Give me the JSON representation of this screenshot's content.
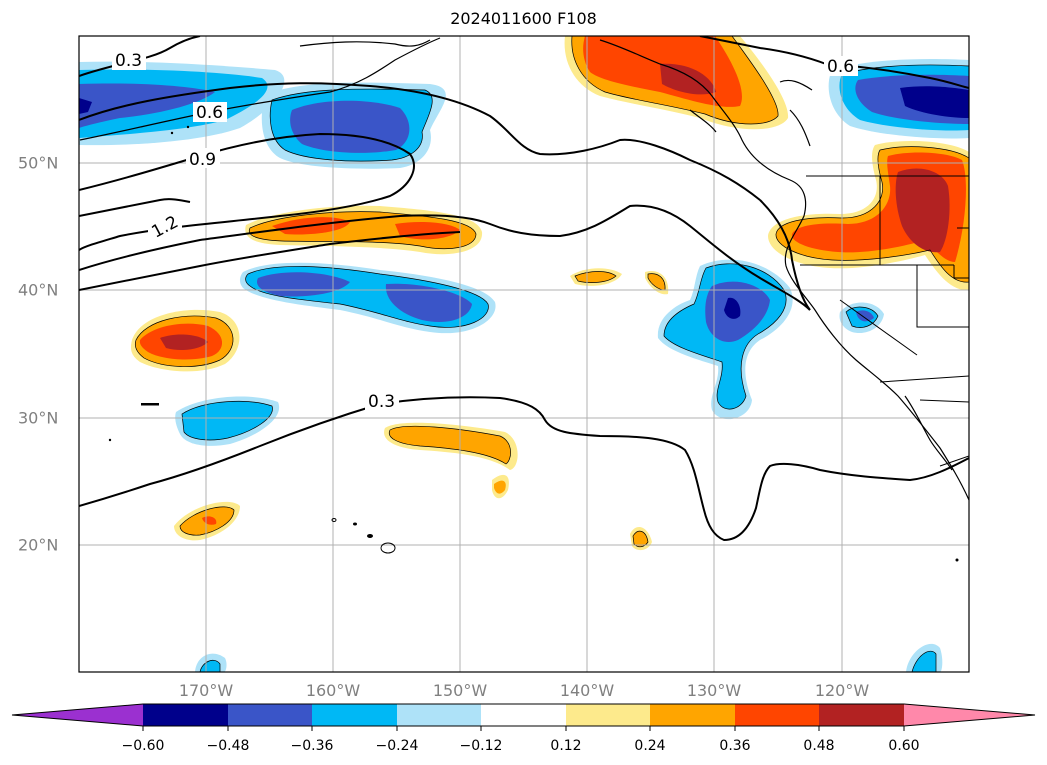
{
  "title": "2024011600 F108",
  "map": {
    "lon_ticks": [
      "170°W",
      "160°W",
      "150°W",
      "140°W",
      "130°W",
      "120°W"
    ],
    "lat_ticks": [
      "50°N",
      "40°N",
      "30°N",
      "20°N"
    ],
    "contour_labels": [
      "0.3",
      "0.6",
      "0.9",
      "1.2",
      "0.6",
      "0.3"
    ]
  },
  "colorbar": {
    "ticks": [
      "−0.60",
      "−0.48",
      "−0.36",
      "−0.24",
      "−0.12",
      "0.12",
      "0.24",
      "0.36",
      "0.48",
      "0.60"
    ],
    "colors": [
      "#9b30d0",
      "#00008b",
      "#3a55c8",
      "#00b8f5",
      "#aee2f8",
      "#ffffff",
      "#fdea8c",
      "#ffa500",
      "#ff4500",
      "#b22222",
      "#ff88aa"
    ]
  }
}
